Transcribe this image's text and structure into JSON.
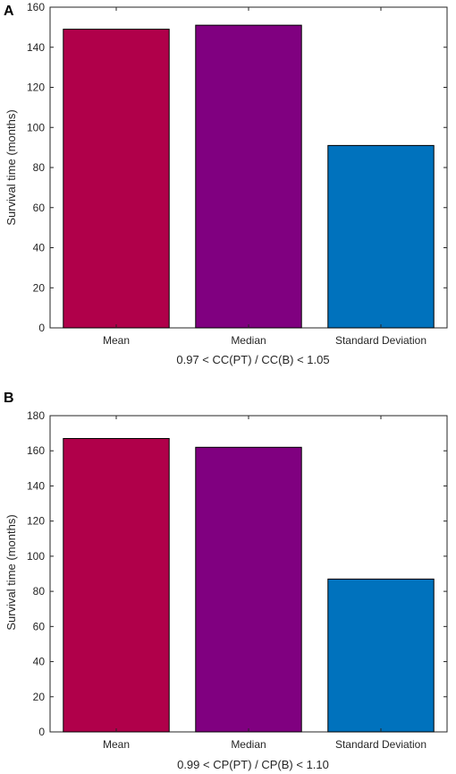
{
  "chart_data": [
    {
      "panel": "A",
      "type": "bar",
      "categories": [
        "Mean",
        "Median",
        "Standard Deviation"
      ],
      "values": [
        149,
        151,
        91
      ],
      "xlabel": "0.97 < CC(PT) / CC(B) < 1.05",
      "ylabel": "Survival time (months)",
      "ylim": [
        0,
        160
      ],
      "yticks": [
        0,
        20,
        40,
        60,
        80,
        100,
        120,
        140,
        160
      ],
      "colors": [
        "#b0004a",
        "#800080",
        "#0072bd"
      ],
      "grid": false,
      "legend": "none"
    },
    {
      "panel": "B",
      "type": "bar",
      "categories": [
        "Mean",
        "Median",
        "Standard Deviation"
      ],
      "values": [
        167,
        162,
        87
      ],
      "xlabel": "0.99 < CP(PT) / CP(B) < 1.10",
      "ylabel": "Survival time (months)",
      "ylim": [
        0,
        180
      ],
      "yticks": [
        0,
        20,
        40,
        60,
        80,
        100,
        120,
        140,
        160,
        180
      ],
      "colors": [
        "#b0004a",
        "#800080",
        "#0072bd"
      ],
      "grid": false,
      "legend": "none"
    }
  ]
}
